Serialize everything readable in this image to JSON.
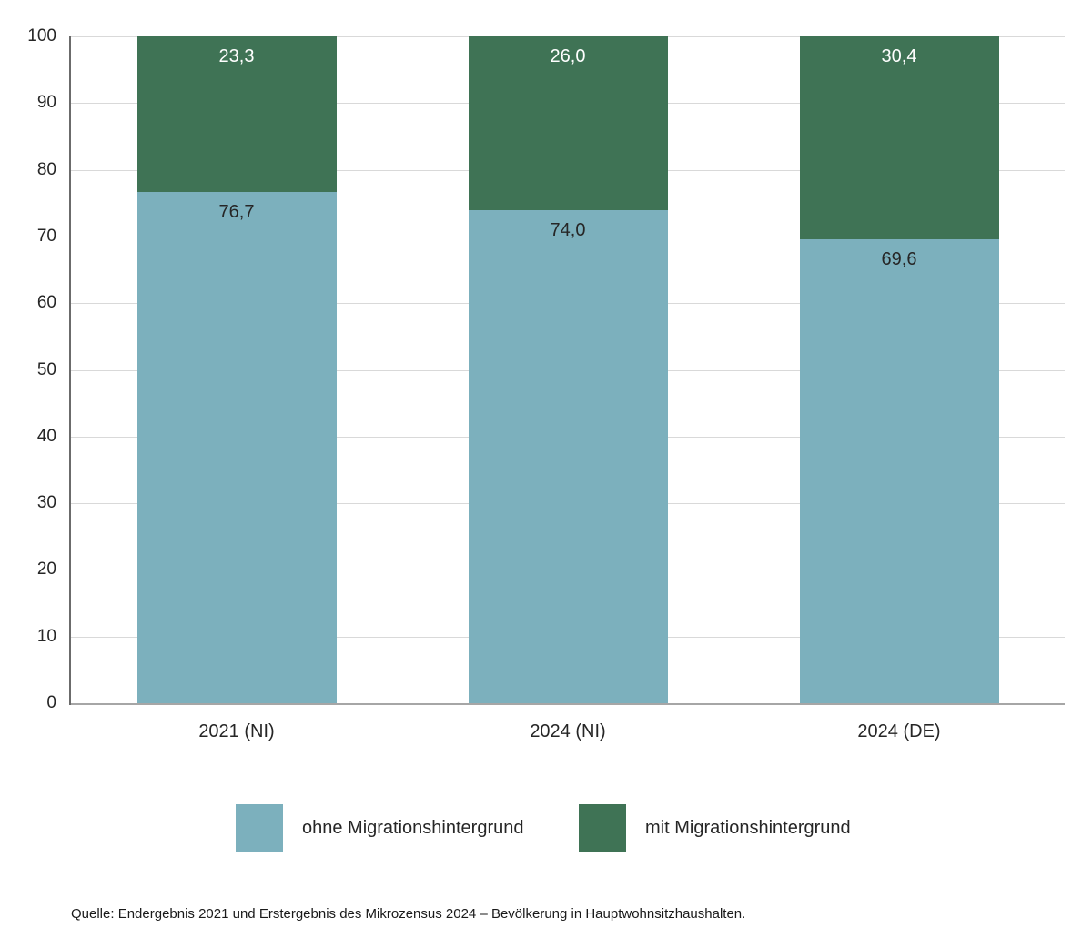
{
  "chart_data": {
    "type": "bar",
    "stacked": true,
    "title": "",
    "xlabel": "",
    "ylabel": "",
    "categories": [
      "2021 (NI)",
      "2024 (NI)",
      "2024 (DE)"
    ],
    "series": [
      {
        "name": "ohne Migrationshintergrund",
        "values": [
          76.7,
          74.0,
          69.6
        ],
        "labels": [
          "76,7",
          "74,0",
          "69,6"
        ],
        "color": "#7cb0bd",
        "label_color": "#262626"
      },
      {
        "name": "mit Migrationshintergrund",
        "values": [
          23.3,
          26.0,
          30.4
        ],
        "labels": [
          "23,3",
          "26,0",
          "30,4"
        ],
        "color": "#3f7355",
        "label_color": "#ffffff"
      }
    ],
    "ylim": [
      0,
      100
    ],
    "yticks": [
      0,
      10,
      20,
      30,
      40,
      50,
      60,
      70,
      80,
      90,
      100
    ],
    "grid": true,
    "legend_position": "bottom",
    "colors": {
      "grid": "#d9d9d9",
      "y_axis": "#6b6b6b",
      "baseline": "#a6a6a6",
      "tick_label": "#262626"
    }
  },
  "legend": {
    "items": [
      {
        "label": "ohne Migrationshintergrund",
        "color": "#7cb0bd"
      },
      {
        "label": "mit Migrationshintergrund",
        "color": "#3f7355"
      }
    ]
  },
  "source": {
    "text": "Quelle: Endergebnis 2021 und Erstergebnis des Mikrozensus 2024 – Bevölkerung in Hauptwohnsitzhaushalten."
  }
}
